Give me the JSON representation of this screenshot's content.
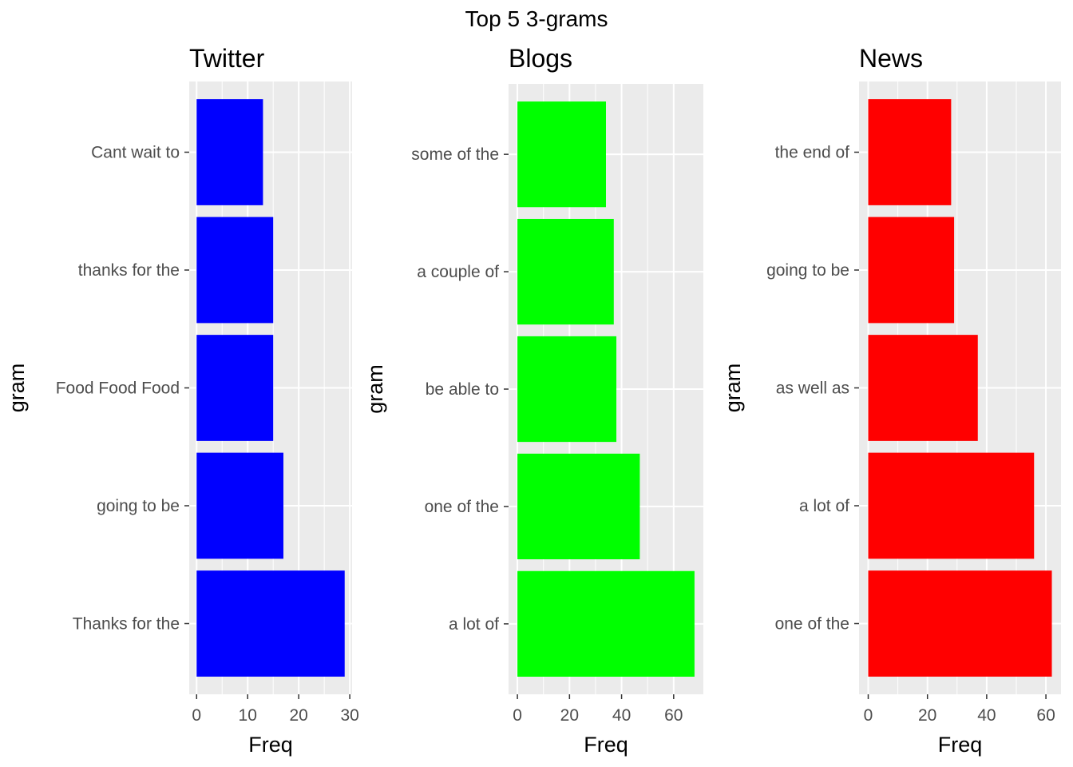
{
  "title": "Top 5 3-grams",
  "chart_data": [
    {
      "type": "bar",
      "orientation": "horizontal",
      "title": "Twitter",
      "xlabel": "Freq",
      "ylabel": "gram",
      "color": "#0000ff",
      "categories": [
        "Cant wait to",
        "thanks for the",
        "Food Food Food",
        "going to be",
        "Thanks for the"
      ],
      "values": [
        13,
        15,
        15,
        17,
        29
      ],
      "xlim": [
        -1.45,
        30.45
      ],
      "xticks": [
        0,
        10,
        20,
        30
      ],
      "grid": true
    },
    {
      "type": "bar",
      "orientation": "horizontal",
      "title": "Blogs",
      "xlabel": "Freq",
      "ylabel": "gram",
      "color": "#00ff00",
      "categories": [
        "some of the",
        "a couple of",
        "be able to",
        "one of the",
        "a lot of"
      ],
      "values": [
        34,
        37,
        38,
        47,
        68
      ],
      "xlim": [
        -3.4,
        71.4
      ],
      "xticks": [
        0,
        20,
        40,
        60
      ],
      "grid": true
    },
    {
      "type": "bar",
      "orientation": "horizontal",
      "title": "News",
      "xlabel": "Freq",
      "ylabel": "gram",
      "color": "#ff0000",
      "categories": [
        "the end of",
        "going to be",
        "as well as",
        "a lot of",
        "one of the"
      ],
      "values": [
        28,
        29,
        37,
        56,
        62
      ],
      "xlim": [
        -3.1,
        65.1
      ],
      "xticks": [
        0,
        20,
        40,
        60
      ],
      "grid": true
    }
  ]
}
